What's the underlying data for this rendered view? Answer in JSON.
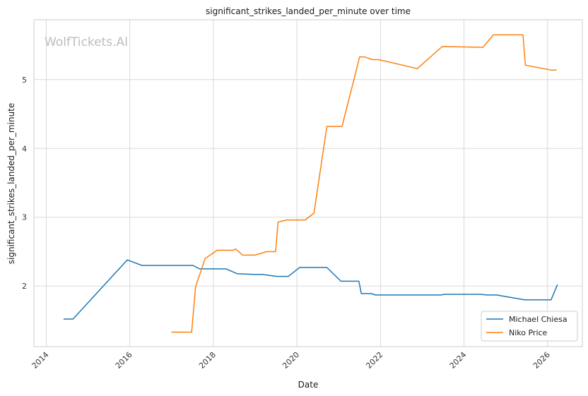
{
  "chart_data": {
    "type": "line",
    "title": "significant_strikes_landed_per_minute over time",
    "xlabel": "Date",
    "ylabel": "significant_strikes_landed_per_minute",
    "watermark": "WolfTickets.AI",
    "x_ticks": [
      "2014",
      "2016",
      "2018",
      "2020",
      "2022",
      "2024",
      "2026"
    ],
    "y_ticks": [
      "2",
      "3",
      "4",
      "5"
    ],
    "xlim": [
      "2013-09-15",
      "2026-11-01"
    ],
    "ylim": [
      1.12,
      5.87
    ],
    "grid": true,
    "legend_position": "lower-right",
    "series": [
      {
        "name": "Michael Chiesa",
        "color": "#1f77b4",
        "points": [
          [
            "2014-06-01",
            1.52
          ],
          [
            "2014-08-23",
            1.52
          ],
          [
            "2015-12-10",
            2.38
          ],
          [
            "2016-04-16",
            2.3
          ],
          [
            "2017-07-07",
            2.3
          ],
          [
            "2017-09-01",
            2.25
          ],
          [
            "2018-04-21",
            2.25
          ],
          [
            "2018-07-28",
            2.18
          ],
          [
            "2018-12-15",
            2.17
          ],
          [
            "2019-03-02",
            2.17
          ],
          [
            "2019-07-13",
            2.14
          ],
          [
            "2019-10-19",
            2.14
          ],
          [
            "2020-01-25",
            2.27
          ],
          [
            "2020-09-19",
            2.27
          ],
          [
            "2021-01-20",
            2.07
          ],
          [
            "2021-06-26",
            2.07
          ],
          [
            "2021-07-17",
            1.89
          ],
          [
            "2021-10-09",
            1.89
          ],
          [
            "2021-11-20",
            1.87
          ],
          [
            "2023-06-10",
            1.87
          ],
          [
            "2023-07-22",
            1.88
          ],
          [
            "2024-05-18",
            1.88
          ],
          [
            "2024-07-20",
            1.87
          ],
          [
            "2024-10-12",
            1.87
          ],
          [
            "2025-06-14",
            1.8
          ],
          [
            "2026-02-01",
            1.8
          ],
          [
            "2026-03-28",
            2.02
          ]
        ]
      },
      {
        "name": "Niko Price",
        "color": "#ff7f0e",
        "points": [
          [
            "2016-12-30",
            1.33
          ],
          [
            "2017-06-25",
            1.33
          ],
          [
            "2017-07-29",
            1.99
          ],
          [
            "2017-10-21",
            2.4
          ],
          [
            "2018-02-03",
            2.52
          ],
          [
            "2018-06-25",
            2.52
          ],
          [
            "2018-07-14",
            2.54
          ],
          [
            "2018-09-15",
            2.45
          ],
          [
            "2018-12-29",
            2.45
          ],
          [
            "2019-04-13",
            2.5
          ],
          [
            "2019-06-29",
            2.5
          ],
          [
            "2019-07-20",
            2.93
          ],
          [
            "2019-10-05",
            2.96
          ],
          [
            "2020-03-14",
            2.96
          ],
          [
            "2020-05-30",
            3.06
          ],
          [
            "2020-09-19",
            4.32
          ],
          [
            "2021-01-30",
            4.32
          ],
          [
            "2021-07-03",
            5.33
          ],
          [
            "2021-08-14",
            5.33
          ],
          [
            "2021-10-23",
            5.29
          ],
          [
            "2021-12-18",
            5.29
          ],
          [
            "2022-11-19",
            5.16
          ],
          [
            "2023-06-24",
            5.48
          ],
          [
            "2024-06-15",
            5.47
          ],
          [
            "2024-09-14",
            5.65
          ],
          [
            "2025-05-31",
            5.65
          ],
          [
            "2025-06-21",
            5.21
          ],
          [
            "2026-01-31",
            5.14
          ],
          [
            "2026-03-21",
            5.14
          ]
        ]
      }
    ]
  }
}
